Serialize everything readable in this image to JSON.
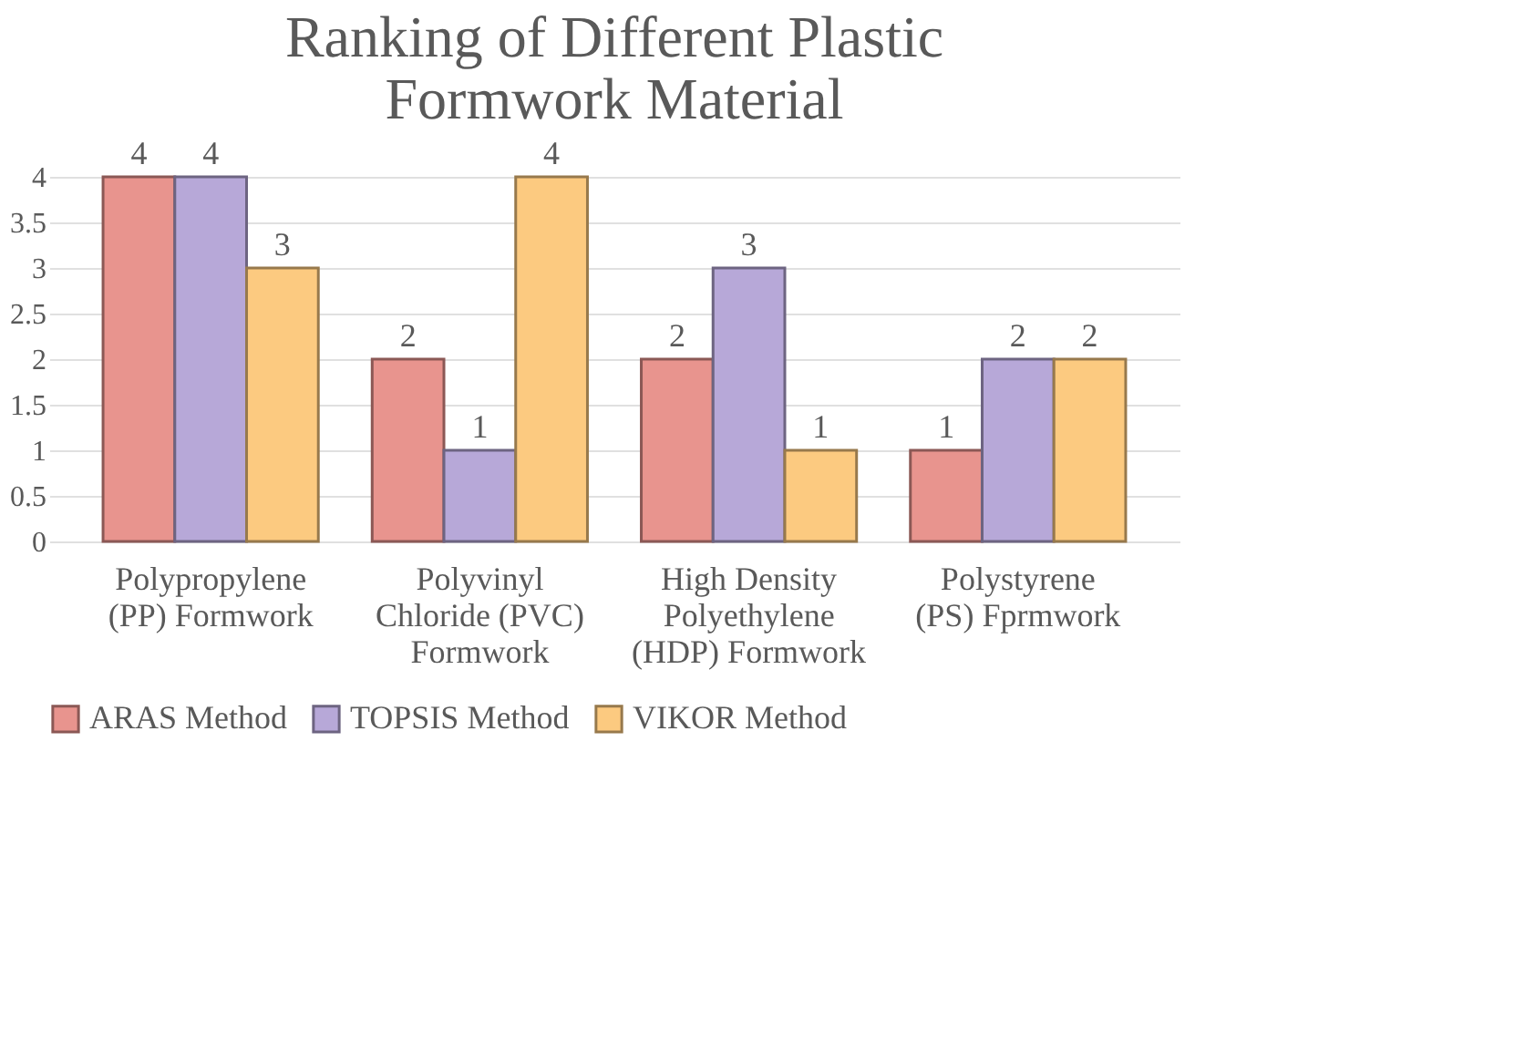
{
  "chart_data": {
    "type": "bar",
    "title": "Ranking of Different Plastic Formwork Material",
    "categories": [
      "Polypropylene (PP) Formwork",
      "Polyvinyl Chloride (PVC) Formwork",
      "High Density Polyethylene (HDP) Formwork",
      "Polystyrene (PS) Fprmwork"
    ],
    "series": [
      {
        "name": "ARAS Method",
        "color": "#e8948e",
        "values": [
          4,
          2,
          2,
          1
        ]
      },
      {
        "name": "TOPSIS Method",
        "color": "#b7a8d8",
        "values": [
          4,
          1,
          3,
          2
        ]
      },
      {
        "name": "VIKOR Method",
        "color": "#fcca80",
        "values": [
          3,
          4,
          1,
          2
        ]
      }
    ],
    "ylim": [
      0,
      4
    ],
    "yticks": [
      0,
      0.5,
      1,
      1.5,
      2,
      2.5,
      3,
      3.5,
      4
    ],
    "grid": "y",
    "legend": "bottom",
    "data_labels": true
  }
}
